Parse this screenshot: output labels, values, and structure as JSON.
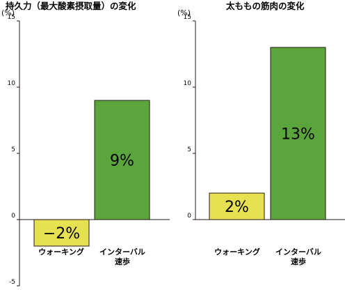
{
  "chart_data": [
    {
      "type": "bar",
      "title": "持久力（最大酸素摂取量）の変化",
      "unit_label": "(%)",
      "ylim": [
        -5,
        15
      ],
      "yticks": [
        "15",
        "10",
        "5",
        "0",
        "-5"
      ],
      "categories": [
        "ウォーキング",
        "インターバル速歩"
      ],
      "category_lines": [
        [
          "ウォーキング"
        ],
        [
          "インターバル",
          "速歩"
        ]
      ],
      "values": [
        -2,
        9
      ],
      "value_labels": [
        "−2%",
        "9%"
      ],
      "bar_colors": [
        "#e5e151",
        "#5aa53c"
      ],
      "grid": false,
      "legend": "none"
    },
    {
      "type": "bar",
      "title": "太ももの筋肉の変化",
      "unit_label": "(%)",
      "ylim": [
        0,
        15
      ],
      "yticks": [
        "15",
        "10",
        "5",
        "0"
      ],
      "categories": [
        "ウォーキング",
        "インターバル速歩"
      ],
      "category_lines": [
        [
          "ウォーキング"
        ],
        [
          "インターバル",
          "速歩"
        ]
      ],
      "values": [
        2,
        13
      ],
      "value_labels": [
        "2%",
        "13%"
      ],
      "bar_colors": [
        "#e5e151",
        "#5aa53c"
      ],
      "grid": false,
      "legend": "none"
    }
  ]
}
